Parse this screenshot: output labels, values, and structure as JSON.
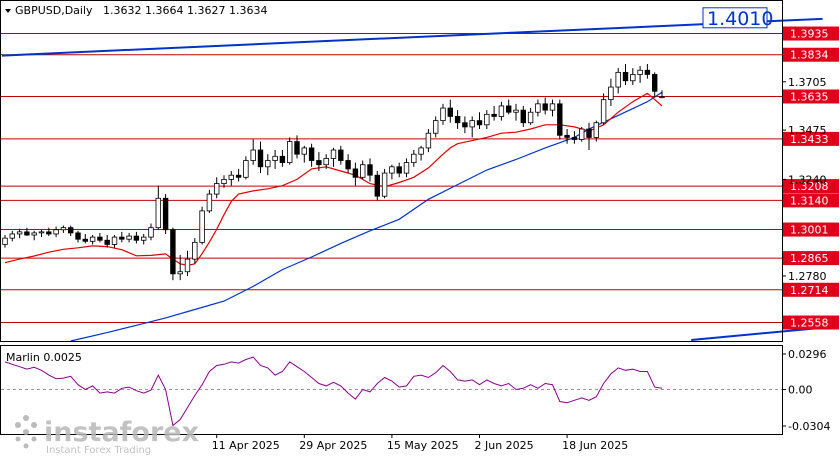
{
  "header": {
    "symbol": "GBPUSD,Daily",
    "ohlc": "1.3632 1.3664 1.3627 1.3634"
  },
  "colors": {
    "candle_up": "#ffffff",
    "candle_down": "#000000",
    "level_line": "#c00000",
    "level_tag": "#e0001a",
    "trend_line": "#0033cc",
    "ma_fast": "#e00000",
    "ma_slow": "#0033cc",
    "marlin": "#8b008b"
  },
  "watermark": {
    "brand": "instaforex",
    "tagline": "Instant Forex Trading"
  },
  "chart_data": [
    {
      "type": "candlestick",
      "title": "",
      "ylim": [
        1.247,
        1.409
      ],
      "levels": [
        {
          "value": 1.3935,
          "label": "1.3935"
        },
        {
          "value": 1.3834,
          "label": "1.3834"
        },
        {
          "value": 1.3635,
          "label": "1.3635"
        },
        {
          "value": 1.3433,
          "label": "1.3433"
        },
        {
          "value": 1.3208,
          "label": "1.3208"
        },
        {
          "value": 1.314,
          "label": "1.3140"
        },
        {
          "value": 1.3001,
          "label": "1.3001"
        },
        {
          "value": 1.2865,
          "label": "1.2865"
        },
        {
          "value": 1.2714,
          "label": "1.2714"
        },
        {
          "value": 1.2558,
          "label": "1.2558"
        }
      ],
      "axis_ticks": [
        {
          "value": 1.3705,
          "label": "1.3705"
        },
        {
          "value": 1.3475,
          "label": "1.3475"
        },
        {
          "value": 1.324,
          "label": "1.3240"
        },
        {
          "value": 1.278,
          "label": "1.2780"
        }
      ],
      "trend_target": {
        "value": 1.401,
        "label": "1.4010"
      },
      "upper_trendline": [
        [
          0,
          1.383
        ],
        [
          112,
          1.4005
        ]
      ],
      "lower_trendline": [
        [
          94,
          1.2475
        ],
        [
          112,
          1.2533
        ]
      ],
      "x_labels": [
        {
          "index": 29,
          "label": "11 Apr 2025"
        },
        {
          "index": 41,
          "label": "29 Apr 2025"
        },
        {
          "index": 53,
          "label": "15 May 2025"
        },
        {
          "index": 65,
          "label": "2 Jun 2025"
        },
        {
          "index": 77,
          "label": "18 Jun 2025"
        }
      ],
      "ohlc": [
        [
          1.293,
          1.2975,
          1.2915,
          1.296
        ],
        [
          1.296,
          1.2995,
          1.2945,
          1.298
        ],
        [
          1.298,
          1.3005,
          1.296,
          1.299
        ],
        [
          1.299,
          1.301,
          1.297,
          1.2975
        ],
        [
          1.2975,
          1.2995,
          1.295,
          1.2985
        ],
        [
          1.2985,
          1.3,
          1.2965,
          1.299
        ],
        [
          1.299,
          1.301,
          1.297,
          1.298
        ],
        [
          1.298,
          1.3015,
          1.2965,
          1.3
        ],
        [
          1.3,
          1.302,
          1.2985,
          1.301
        ],
        [
          1.301,
          1.302,
          1.297,
          1.2985
        ],
        [
          1.2985,
          1.2995,
          1.294,
          1.2955
        ],
        [
          1.2955,
          1.298,
          1.2935,
          1.2945
        ],
        [
          1.2945,
          1.2975,
          1.293,
          1.2965
        ],
        [
          1.2965,
          1.2985,
          1.294,
          1.295
        ],
        [
          1.295,
          1.2975,
          1.2915,
          1.293
        ],
        [
          1.293,
          1.2975,
          1.2915,
          1.2965
        ],
        [
          1.2965,
          1.299,
          1.294,
          1.2955
        ],
        [
          1.2955,
          1.2985,
          1.294,
          1.297
        ],
        [
          1.297,
          1.299,
          1.2935,
          1.295
        ],
        [
          1.295,
          1.298,
          1.293,
          1.2965
        ],
        [
          1.2965,
          1.303,
          1.295,
          1.301
        ],
        [
          1.301,
          1.321,
          1.3,
          1.315
        ],
        [
          1.315,
          1.317,
          1.298,
          1.3
        ],
        [
          1.3,
          1.301,
          1.276,
          1.279
        ],
        [
          1.279,
          1.288,
          1.276,
          1.28
        ],
        [
          1.28,
          1.29,
          1.278,
          1.286
        ],
        [
          1.286,
          1.296,
          1.284,
          1.294
        ],
        [
          1.294,
          1.311,
          1.293,
          1.309
        ],
        [
          1.309,
          1.319,
          1.308,
          1.317
        ],
        [
          1.317,
          1.325,
          1.315,
          1.322
        ],
        [
          1.322,
          1.326,
          1.32,
          1.324
        ],
        [
          1.324,
          1.328,
          1.321,
          1.326
        ],
        [
          1.326,
          1.329,
          1.323,
          1.325
        ],
        [
          1.325,
          1.335,
          1.324,
          1.333
        ],
        [
          1.333,
          1.343,
          1.331,
          1.338
        ],
        [
          1.338,
          1.342,
          1.327,
          1.33
        ],
        [
          1.33,
          1.336,
          1.326,
          1.333
        ],
        [
          1.333,
          1.338,
          1.329,
          1.335
        ],
        [
          1.335,
          1.338,
          1.33,
          1.332
        ],
        [
          1.332,
          1.344,
          1.331,
          1.342
        ],
        [
          1.342,
          1.345,
          1.334,
          1.336
        ],
        [
          1.336,
          1.34,
          1.332,
          1.339
        ],
        [
          1.339,
          1.341,
          1.33,
          1.333
        ],
        [
          1.333,
          1.337,
          1.328,
          1.331
        ],
        [
          1.331,
          1.336,
          1.329,
          1.334
        ],
        [
          1.334,
          1.339,
          1.33,
          1.338
        ],
        [
          1.338,
          1.34,
          1.331,
          1.333
        ],
        [
          1.333,
          1.336,
          1.327,
          1.329
        ],
        [
          1.329,
          1.332,
          1.321,
          1.325
        ],
        [
          1.325,
          1.333,
          1.324,
          1.331
        ],
        [
          1.331,
          1.334,
          1.323,
          1.326
        ],
        [
          1.326,
          1.328,
          1.314,
          1.316
        ],
        [
          1.316,
          1.329,
          1.315,
          1.327
        ],
        [
          1.327,
          1.331,
          1.324,
          1.33
        ],
        [
          1.33,
          1.332,
          1.325,
          1.327
        ],
        [
          1.327,
          1.334,
          1.325,
          1.332
        ],
        [
          1.332,
          1.338,
          1.33,
          1.336
        ],
        [
          1.336,
          1.34,
          1.333,
          1.339
        ],
        [
          1.339,
          1.348,
          1.337,
          1.346
        ],
        [
          1.346,
          1.354,
          1.344,
          1.352
        ],
        [
          1.352,
          1.36,
          1.35,
          1.358
        ],
        [
          1.358,
          1.362,
          1.351,
          1.354
        ],
        [
          1.354,
          1.357,
          1.348,
          1.351
        ],
        [
          1.351,
          1.354,
          1.346,
          1.349
        ],
        [
          1.349,
          1.354,
          1.344,
          1.352
        ],
        [
          1.352,
          1.356,
          1.348,
          1.35
        ],
        [
          1.35,
          1.357,
          1.348,
          1.355
        ],
        [
          1.355,
          1.359,
          1.352,
          1.354
        ],
        [
          1.354,
          1.361,
          1.352,
          1.359
        ],
        [
          1.359,
          1.362,
          1.355,
          1.356
        ],
        [
          1.356,
          1.36,
          1.352,
          1.357
        ],
        [
          1.357,
          1.359,
          1.349,
          1.351
        ],
        [
          1.351,
          1.358,
          1.35,
          1.356
        ],
        [
          1.356,
          1.362,
          1.354,
          1.36
        ],
        [
          1.36,
          1.363,
          1.355,
          1.357
        ],
        [
          1.357,
          1.362,
          1.354,
          1.36
        ],
        [
          1.36,
          1.362,
          1.343,
          1.345
        ],
        [
          1.345,
          1.348,
          1.341,
          1.344
        ],
        [
          1.344,
          1.347,
          1.341,
          1.343
        ],
        [
          1.343,
          1.349,
          1.342,
          1.348
        ],
        [
          1.348,
          1.351,
          1.338,
          1.344
        ],
        [
          1.344,
          1.352,
          1.342,
          1.351
        ],
        [
          1.351,
          1.365,
          1.35,
          1.362
        ],
        [
          1.362,
          1.372,
          1.359,
          1.368
        ],
        [
          1.368,
          1.377,
          1.365,
          1.375
        ],
        [
          1.375,
          1.379,
          1.369,
          1.371
        ],
        [
          1.371,
          1.377,
          1.369,
          1.374
        ],
        [
          1.374,
          1.378,
          1.37,
          1.376
        ],
        [
          1.376,
          1.379,
          1.372,
          1.374
        ],
        [
          1.374,
          1.375,
          1.363,
          1.366
        ],
        [
          1.3632,
          1.3664,
          1.3627,
          1.3634
        ]
      ],
      "ma_fast": [
        [
          0,
          1.2843
        ],
        [
          2,
          1.286
        ],
        [
          4,
          1.2875
        ],
        [
          6,
          1.2893
        ],
        [
          8,
          1.2907
        ],
        [
          10,
          1.2914
        ],
        [
          12,
          1.2923
        ],
        [
          14,
          1.292
        ],
        [
          16,
          1.2905
        ],
        [
          18,
          1.2876
        ],
        [
          20,
          1.2878
        ],
        [
          22,
          1.2885
        ],
        [
          23,
          1.286
        ],
        [
          24,
          1.2838
        ],
        [
          25,
          1.283
        ],
        [
          26,
          1.2838
        ],
        [
          27,
          1.2886
        ],
        [
          28,
          1.2941
        ],
        [
          29,
          1.3002
        ],
        [
          30,
          1.3072
        ],
        [
          31,
          1.3135
        ],
        [
          32,
          1.317
        ],
        [
          34,
          1.3185
        ],
        [
          36,
          1.3195
        ],
        [
          38,
          1.321
        ],
        [
          40,
          1.324
        ],
        [
          42,
          1.329
        ],
        [
          44,
          1.33
        ],
        [
          46,
          1.328
        ],
        [
          48,
          1.326
        ],
        [
          50,
          1.322
        ],
        [
          52,
          1.3205
        ],
        [
          54,
          1.3225
        ],
        [
          56,
          1.325
        ],
        [
          58,
          1.3295
        ],
        [
          60,
          1.336
        ],
        [
          61,
          1.339
        ],
        [
          62,
          1.341
        ],
        [
          64,
          1.3425
        ],
        [
          66,
          1.344
        ],
        [
          68,
          1.346
        ],
        [
          70,
          1.3465
        ],
        [
          72,
          1.348
        ],
        [
          74,
          1.35
        ],
        [
          76,
          1.35
        ],
        [
          78,
          1.349
        ],
        [
          80,
          1.347
        ],
        [
          82,
          1.35
        ],
        [
          84,
          1.356
        ],
        [
          86,
          1.361
        ],
        [
          88,
          1.365
        ],
        [
          89,
          1.362
        ],
        [
          90,
          1.359
        ]
      ],
      "ma_slow": [
        [
          9,
          1.247
        ],
        [
          14,
          1.251
        ],
        [
          18,
          1.2545
        ],
        [
          22,
          1.258
        ],
        [
          26,
          1.262
        ],
        [
          30,
          1.266
        ],
        [
          34,
          1.273
        ],
        [
          38,
          1.281
        ],
        [
          42,
          1.287
        ],
        [
          46,
          1.2935
        ],
        [
          50,
          1.2995
        ],
        [
          54,
          1.305
        ],
        [
          58,
          1.3145
        ],
        [
          62,
          1.3215
        ],
        [
          66,
          1.3285
        ],
        [
          70,
          1.3335
        ],
        [
          74,
          1.339
        ],
        [
          78,
          1.344
        ],
        [
          80,
          1.348
        ],
        [
          84,
          1.3545
        ],
        [
          88,
          1.361
        ],
        [
          90,
          1.3655
        ]
      ]
    },
    {
      "type": "line",
      "title": "Marlin 0.0025",
      "ylim": [
        -0.0304,
        0.0296
      ],
      "axis_ticks": [
        {
          "value": 0.0296,
          "label": "0.0296"
        },
        {
          "value": 0.0,
          "label": "0.00"
        },
        {
          "value": -0.0304,
          "label": "-0.0304"
        }
      ],
      "series": [
        {
          "values": [
            0.023,
            0.021,
            0.019,
            0.017,
            0.0185,
            0.016,
            0.012,
            0.009,
            0.0095,
            0.011,
            0.004,
            0.0,
            0.003,
            -0.003,
            -0.002,
            -0.003,
            0.001,
            0.002,
            -0.001,
            -0.003,
            -0.0005,
            0.012,
            0.0,
            -0.03,
            -0.025,
            -0.015,
            -0.005,
            0.004,
            0.015,
            0.02,
            0.021,
            0.023,
            0.022,
            0.025,
            0.027,
            0.02,
            0.018,
            0.012,
            0.015,
            0.023,
            0.019,
            0.015,
            0.01,
            0.005,
            0.003,
            0.006,
            0.003,
            -0.003,
            -0.008,
            0.0,
            -0.002,
            0.005,
            0.01,
            0.007,
            0.002,
            0.003,
            0.011,
            0.012,
            0.01,
            0.014,
            0.02,
            0.015,
            0.008,
            0.007,
            0.008,
            0.004,
            0.008,
            0.005,
            0.003,
            0.005,
            0.0,
            0.001,
            0.004,
            0.001,
            0.005,
            0.004,
            -0.01,
            -0.011,
            -0.009,
            -0.007,
            -0.009,
            -0.006,
            0.005,
            0.013,
            0.018,
            0.016,
            0.017,
            0.015,
            0.015,
            0.002,
            0.001
          ]
        }
      ]
    }
  ]
}
